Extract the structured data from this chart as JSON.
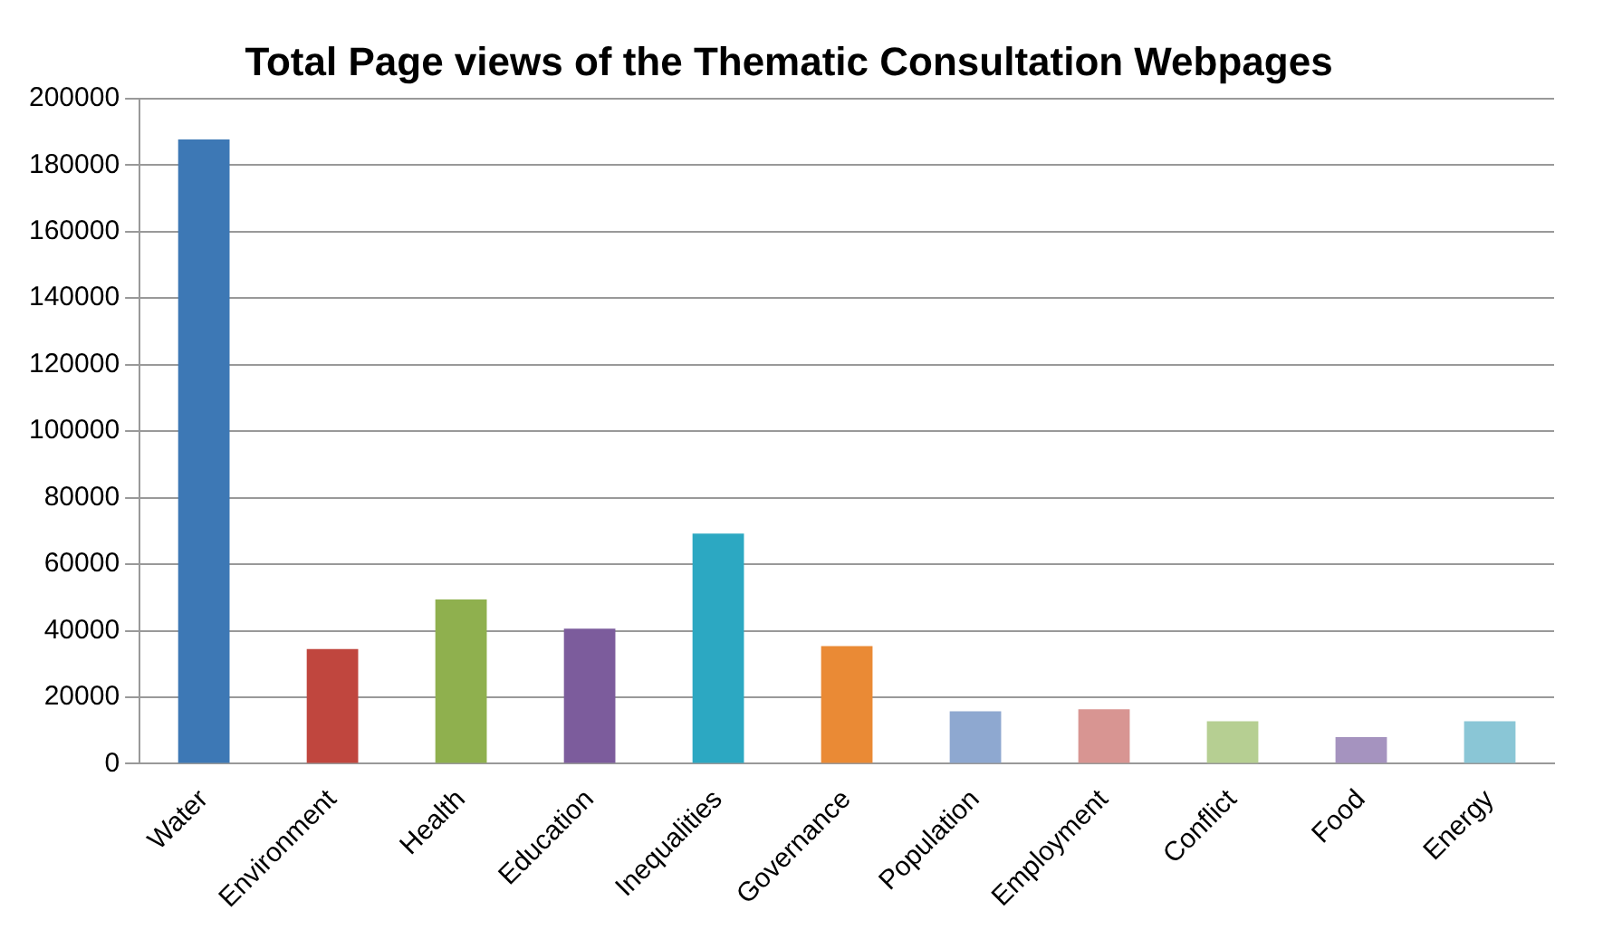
{
  "chart_data": {
    "type": "bar",
    "title": "Total Page views of the Thematic Consultation Webpages",
    "categories": [
      "Water",
      "Environment",
      "Health",
      "Education",
      "Inequalities",
      "Governance",
      "Population",
      "Employment",
      "Conflict",
      "Food",
      "Energy"
    ],
    "values": [
      187700,
      34500,
      49400,
      40600,
      69200,
      35400,
      15800,
      16400,
      12800,
      8000,
      12800
    ],
    "colors": [
      "#3d78b5",
      "#c0463e",
      "#8fb04e",
      "#7c5c9c",
      "#2ca8c2",
      "#ea8a35",
      "#8ea8d0",
      "#d89592",
      "#b6cf92",
      "#a593bf",
      "#8ac6d6"
    ],
    "ylim": [
      0,
      200000
    ],
    "yticks": [
      0,
      20000,
      40000,
      60000,
      80000,
      100000,
      120000,
      140000,
      160000,
      180000,
      200000
    ],
    "grid": "y",
    "legend": false
  }
}
